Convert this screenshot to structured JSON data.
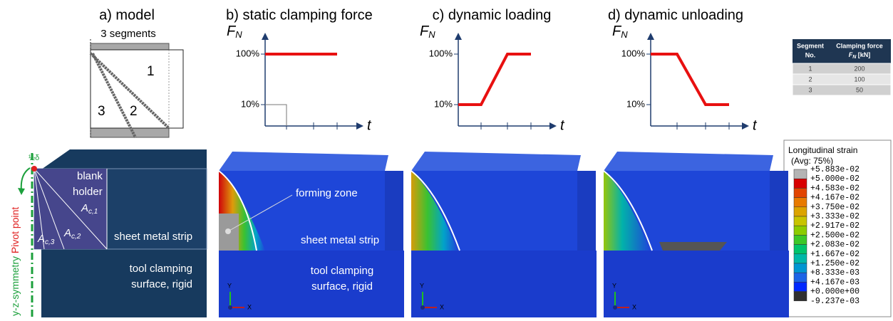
{
  "panels": [
    {
      "title": "a) model",
      "segments_label": "3 segments",
      "segment_numbers": [
        "1",
        "2",
        "3"
      ]
    },
    {
      "title": "b) static clamping force",
      "y_axis": "F",
      "y_axis_sub": "N",
      "x_axis": "t",
      "ticks": [
        "100%",
        "10%"
      ]
    },
    {
      "title": "c) dynamic loading",
      "y_axis": "F",
      "y_axis_sub": "N",
      "x_axis": "t",
      "ticks": [
        "100%",
        "10%"
      ]
    },
    {
      "title": "d) dynamic unloading",
      "y_axis": "F",
      "y_axis_sub": "N",
      "x_axis": "t",
      "ticks": [
        "100%",
        "10%"
      ]
    }
  ],
  "table": {
    "header": [
      [
        "Segment",
        "No."
      ],
      [
        "Clamping force",
        "F",
        "N",
        " [kN]"
      ]
    ],
    "rows": [
      [
        "1",
        "200"
      ],
      [
        "2",
        "100"
      ],
      [
        "3",
        "50"
      ]
    ]
  },
  "model": {
    "half_delta": "½δ",
    "symmetry": "y-z-symmetry",
    "pivot": "Pivot point",
    "blank_holder": [
      "blank",
      "holder"
    ],
    "areas": [
      {
        "base": "A",
        "sub": "c,1"
      },
      {
        "base": "A",
        "sub": "c,2"
      },
      {
        "base": "A",
        "sub": "c,3"
      }
    ],
    "strip": "sheet metal strip",
    "tool": [
      "tool clamping",
      "surface, rigid"
    ]
  },
  "fe": {
    "forming_zone": "forming zone",
    "strip": "sheet metal strip",
    "tool": [
      "tool clamping",
      "surface, rigid"
    ],
    "axis_y": "Y",
    "axis_x": "X"
  },
  "legend": {
    "title": "Longitudinal strain",
    "subtitle": "(Avg: 75%)",
    "labels": [
      "+5.883e-02",
      "+5.000e-02",
      "+4.583e-02",
      "+4.167e-02",
      "+3.750e-02",
      "+3.333e-02",
      "+2.917e-02",
      "+2.500e-02",
      "+2.083e-02",
      "+1.667e-02",
      "+1.250e-02",
      "+8.333e-03",
      "+4.167e-03",
      "+0.000e+00",
      "-9.237e-03"
    ],
    "colors": [
      "#b4b4b4",
      "#d80000",
      "#e24400",
      "#e87a00",
      "#dca400",
      "#c8c400",
      "#8ccc00",
      "#3cc828",
      "#00c46c",
      "#00b8a8",
      "#0096d2",
      "#1c64e6",
      "#0028ff",
      "#303030"
    ]
  }
}
